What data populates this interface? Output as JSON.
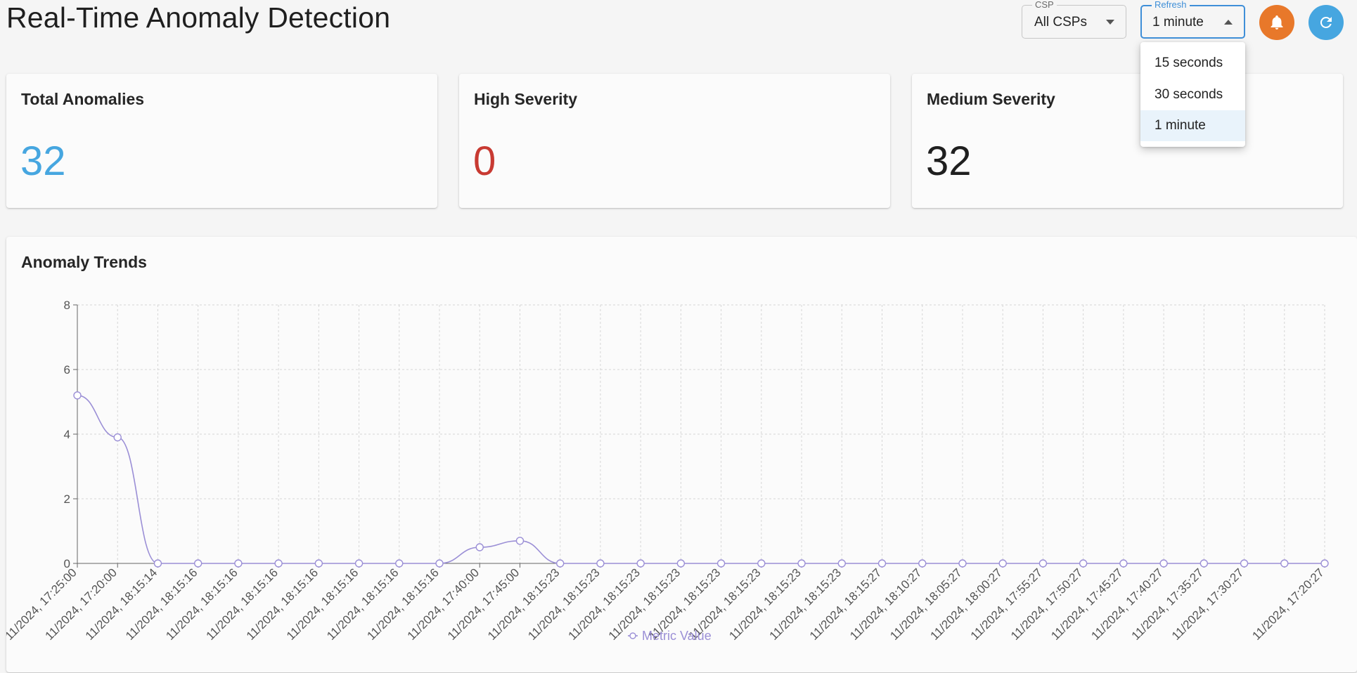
{
  "header": {
    "title": "Real-Time Anomaly Detection",
    "csp": {
      "label": "CSP",
      "value": "All CSPs"
    },
    "refresh": {
      "label": "Refresh",
      "value": "1 minute"
    },
    "notification_icon": "bell-icon",
    "refresh_icon": "refresh-icon",
    "colors": {
      "notification": "#e8782a",
      "refresh_button": "#46a6e0"
    }
  },
  "refresh_menu": {
    "options": [
      "15 seconds",
      "30 seconds",
      "1 minute"
    ],
    "selected": "1 minute"
  },
  "stats": [
    {
      "title": "Total Anomalies",
      "value": "32",
      "color": "#46a6e0"
    },
    {
      "title": "High Severity",
      "value": "0",
      "color": "#c83a32"
    },
    {
      "title": "Medium Severity",
      "value": "32",
      "color": "#1f1f1f"
    }
  ],
  "trend": {
    "title": "Anomaly Trends",
    "chart_data": {
      "type": "line",
      "categories": [
        "11/2024, 17:25:00",
        "11/2024, 17:20:00",
        "11/2024, 18:15:14",
        "11/2024, 18:15:16",
        "11/2024, 18:15:16",
        "11/2024, 18:15:16",
        "11/2024, 18:15:16",
        "11/2024, 18:15:16",
        "11/2024, 18:15:16",
        "11/2024, 18:15:16",
        "11/2024, 17:40:00",
        "11/2024, 17:45:00",
        "11/2024, 18:15:23",
        "11/2024, 18:15:23",
        "11/2024, 18:15:23",
        "11/2024, 18:15:23",
        "11/2024, 18:15:23",
        "11/2024, 18:15:23",
        "11/2024, 18:15:23",
        "11/2024, 18:15:23",
        "11/2024, 18:15:27",
        "11/2024, 18:10:27",
        "11/2024, 18:05:27",
        "11/2024, 18:00:27",
        "11/2024, 17:55:27",
        "11/2024, 17:50:27",
        "11/2024, 17:45:27",
        "11/2024, 17:40:27",
        "11/2024, 17:35:27",
        "11/2024, 17:30:27",
        "",
        "11/2024, 17:20:27"
      ],
      "series": [
        {
          "name": "Metric Value",
          "color": "#9b8fd6",
          "values": [
            5.2,
            3.9,
            0,
            0,
            0,
            0,
            0,
            0,
            0,
            0,
            0.5,
            0.7,
            0,
            0,
            0,
            0,
            0,
            0,
            0,
            0,
            0,
            0,
            0,
            0,
            0,
            0,
            0,
            0,
            0,
            0,
            0,
            0
          ]
        }
      ],
      "ylim": [
        0,
        8
      ],
      "yticks": [
        0,
        2,
        4,
        6,
        8
      ],
      "grid": true,
      "legend": "bottom-center"
    }
  }
}
